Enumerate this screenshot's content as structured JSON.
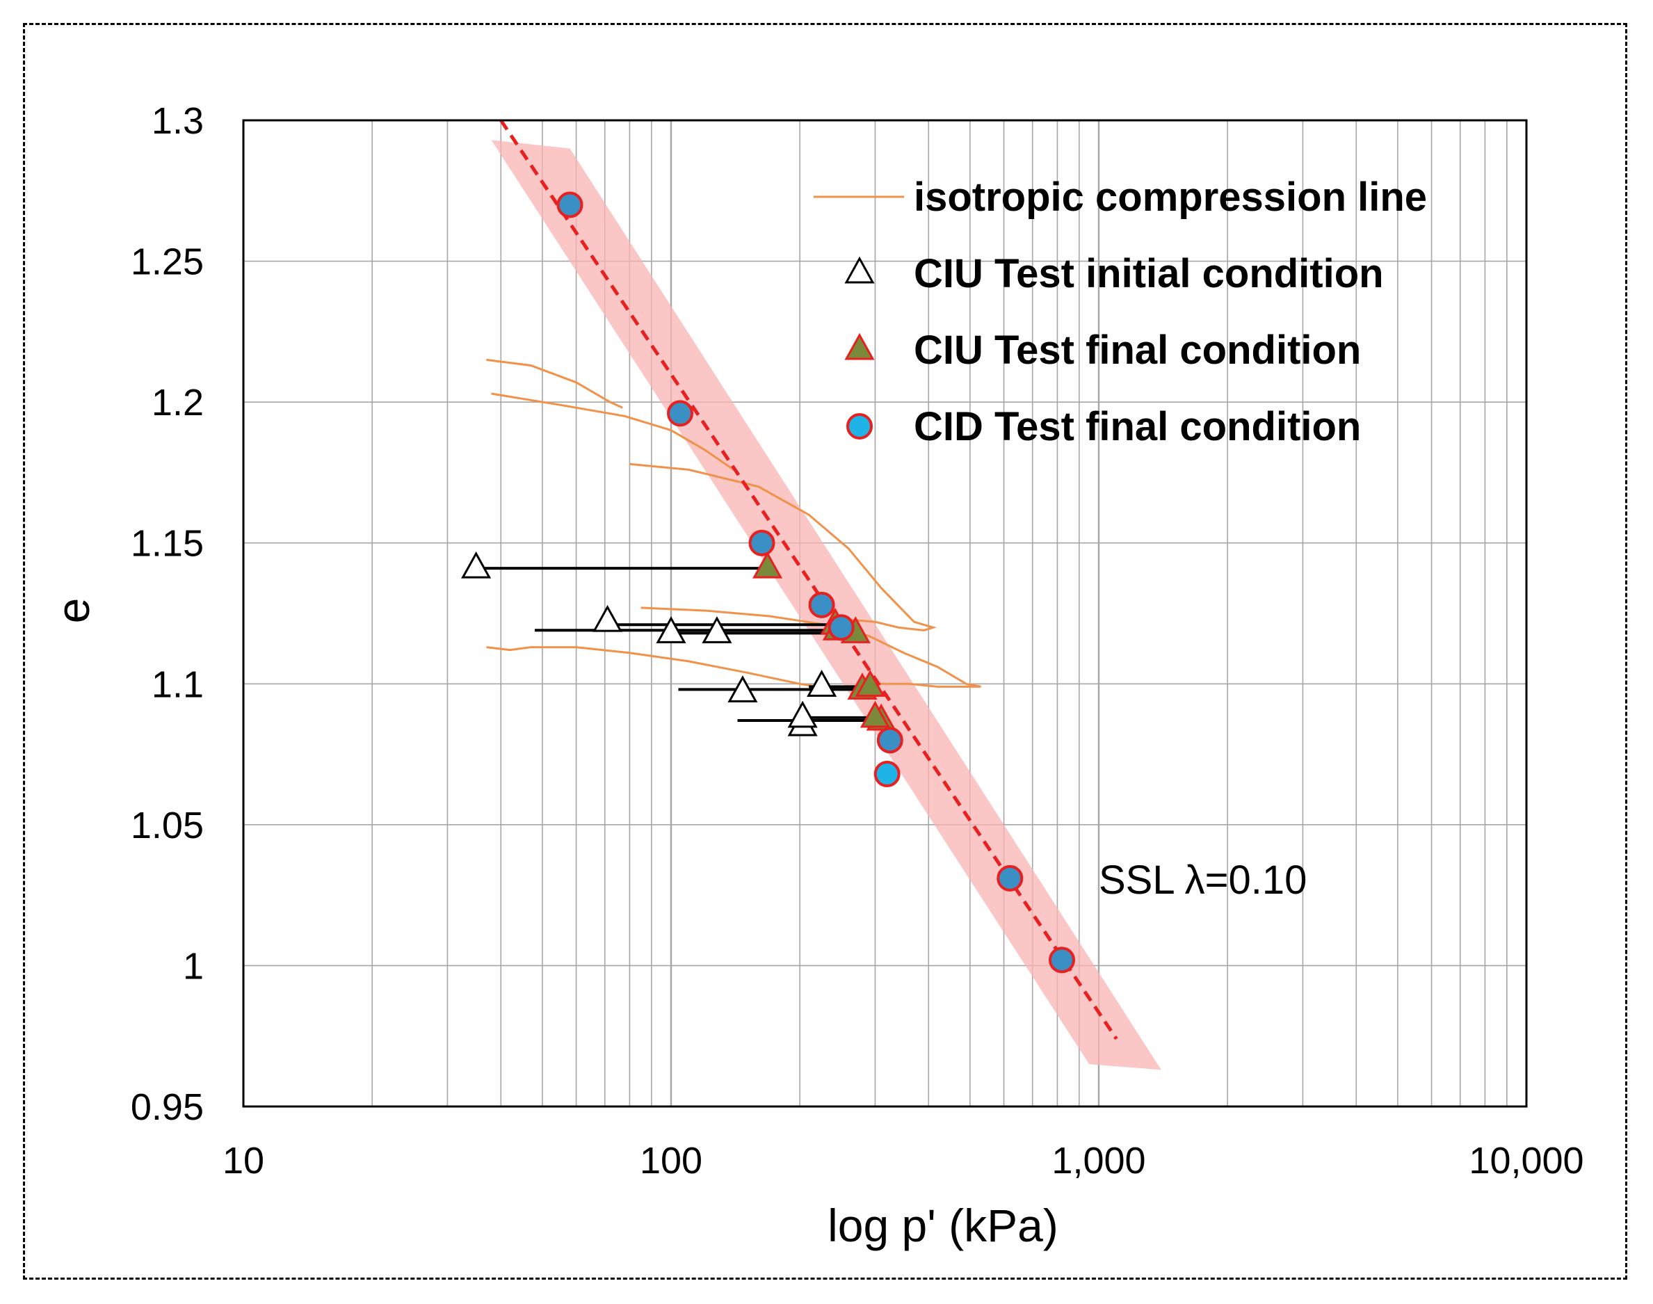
{
  "chart_data": {
    "type": "scatter",
    "xlabel": "log p' (kPa)",
    "ylabel": "e",
    "x_scale": "log",
    "xlim": [
      10,
      10000
    ],
    "ylim": [
      0.95,
      1.3
    ],
    "x_major_ticks": [
      10,
      100,
      1000,
      10000
    ],
    "x_tick_labels": [
      "10",
      "100",
      "1,000",
      "10,000"
    ],
    "y_ticks": [
      0.95,
      1.0,
      1.05,
      1.1,
      1.15,
      1.2,
      1.25,
      1.3
    ],
    "y_tick_labels": [
      "0.95",
      "1",
      "1.05",
      "1.1",
      "1.15",
      "1.2",
      "1.25",
      "1.3"
    ],
    "grid": true,
    "legend_position": "top-right",
    "legend": [
      {
        "key": "icl",
        "label": "isotropic compression line"
      },
      {
        "key": "ciu_initial",
        "label": "CIU Test initial condition"
      },
      {
        "key": "ciu_final",
        "label": "CIU Test final condition"
      },
      {
        "key": "cid_final",
        "label": "CID Test final condition"
      }
    ],
    "annotation": "SSL λ=0.10",
    "ssl_line": {
      "x": [
        40,
        1100
      ],
      "y": [
        1.3,
        0.974
      ]
    },
    "ssl_band": [
      [
        38,
        1.293
      ],
      [
        58,
        1.29
      ],
      [
        1400,
        0.963
      ],
      [
        950,
        0.965
      ]
    ],
    "isotropic_compression_lines": [
      [
        [
          37,
          1.215
        ],
        [
          47,
          1.213
        ],
        [
          60,
          1.207
        ],
        [
          72,
          1.2
        ],
        [
          77,
          1.198
        ]
      ],
      [
        [
          38,
          1.203
        ],
        [
          55,
          1.199
        ],
        [
          78,
          1.195
        ],
        [
          100,
          1.19
        ],
        [
          120,
          1.183
        ],
        [
          140,
          1.176
        ]
      ],
      [
        [
          80,
          1.178
        ],
        [
          110,
          1.176
        ],
        [
          160,
          1.17
        ],
        [
          210,
          1.16
        ],
        [
          260,
          1.148
        ],
        [
          310,
          1.134
        ],
        [
          370,
          1.122
        ],
        [
          410,
          1.12
        ],
        [
          390,
          1.119
        ],
        [
          340,
          1.12
        ],
        [
          300,
          1.122
        ],
        [
          250,
          1.123
        ]
      ],
      [
        [
          85,
          1.127
        ],
        [
          120,
          1.126
        ],
        [
          170,
          1.124
        ],
        [
          230,
          1.121
        ],
        [
          290,
          1.117
        ],
        [
          350,
          1.111
        ],
        [
          420,
          1.106
        ],
        [
          490,
          1.1
        ],
        [
          530,
          1.099
        ],
        [
          480,
          1.099
        ],
        [
          420,
          1.099
        ],
        [
          360,
          1.1
        ],
        [
          300,
          1.1
        ]
      ],
      [
        [
          37,
          1.113
        ],
        [
          42,
          1.112
        ],
        [
          47,
          1.113
        ],
        [
          60,
          1.113
        ],
        [
          80,
          1.111
        ],
        [
          110,
          1.108
        ],
        [
          150,
          1.104
        ],
        [
          200,
          1.1
        ],
        [
          240,
          1.098
        ]
      ]
    ],
    "ciu_paths": [
      {
        "initial": {
          "x": 35,
          "y": 1.141
        },
        "final": {
          "x": 168,
          "y": 1.141
        }
      },
      {
        "initial": {
          "x": 71,
          "y": 1.122
        },
        "final": {
          "x": 242,
          "y": 1.121
        }
      },
      {
        "initial": {
          "x": 100,
          "y": 1.118
        },
        "final": {
          "x": 245,
          "y": 1.119
        }
      },
      {
        "initial": {
          "x": 128,
          "y": 1.118
        },
        "final": {
          "x": 270,
          "y": 1.118
        }
      },
      {
        "initial": {
          "x": 147,
          "y": 1.097
        },
        "final": {
          "x": 280,
          "y": 1.098
        }
      },
      {
        "initial": {
          "x": 225,
          "y": 1.099
        },
        "final": {
          "x": 292,
          "y": 1.099
        }
      },
      {
        "initial": {
          "x": 203,
          "y": 1.085
        },
        "final": {
          "x": 310,
          "y": 1.087
        }
      },
      {
        "initial": {
          "x": 203,
          "y": 1.088
        },
        "final": {
          "x": 300,
          "y": 1.088
        }
      }
    ],
    "ciu_path_starts": [
      35,
      70,
      48,
      100,
      104,
      210,
      143,
      210
    ],
    "cid_final": [
      {
        "x": 58,
        "y": 1.27,
        "fill": "#3a8fc4"
      },
      {
        "x": 105,
        "y": 1.196,
        "fill": "#3a8fc4"
      },
      {
        "x": 163,
        "y": 1.15,
        "fill": "#3a8fc4"
      },
      {
        "x": 225,
        "y": 1.128,
        "fill": "#3a8fc4"
      },
      {
        "x": 250,
        "y": 1.12,
        "fill": "#3a8fc4"
      },
      {
        "x": 325,
        "y": 1.08,
        "fill": "#3a8fc4"
      },
      {
        "x": 320,
        "y": 1.068,
        "fill": "#1fb3e8"
      },
      {
        "x": 620,
        "y": 1.031,
        "fill": "#3a8fc4"
      },
      {
        "x": 820,
        "y": 1.002,
        "fill": "#3a8fc4"
      }
    ],
    "colors": {
      "ssl": "#e8201f",
      "band": "#f9b3b3",
      "icl": "#f0924a",
      "ciu_final_fill": "#7a8a3a",
      "marker_edge": "#e8201f",
      "grid": "#a6a6a6"
    }
  }
}
